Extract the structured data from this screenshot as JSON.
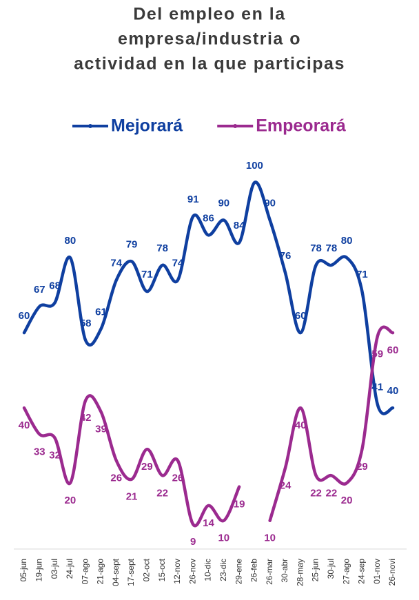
{
  "chart_data": {
    "type": "line",
    "title": [
      "Del empleo en la",
      "empresa/industria o",
      "actividad en la que participas"
    ],
    "categories": [
      "05-jun",
      "19-jun",
      "03-jul",
      "24-jul",
      "07-ago",
      "21-ago",
      "04-sept",
      "17-sept",
      "02-oct",
      "15-oct",
      "12-nov",
      "26-nov",
      "10-dic",
      "23-dic",
      "29-ene",
      "26-feb",
      "26-mar",
      "30-abr",
      "28-may",
      "25-jun",
      "30-jul",
      "27-ago",
      "24-sep",
      "01-nov",
      "26-novi"
    ],
    "series": [
      {
        "name": "Mejorará",
        "color": "#0f3fa0",
        "values": [
          60,
          67,
          68,
          80,
          58,
          61,
          74,
          79,
          71,
          78,
          74,
          91,
          86,
          90,
          84,
          100,
          90,
          76,
          60,
          78,
          78,
          80,
          71,
          41,
          40
        ]
      },
      {
        "name": "Empeorará",
        "color": "#9b2a8f",
        "values": [
          40,
          33,
          32,
          20,
          42,
          39,
          26,
          21,
          29,
          22,
          26,
          9,
          14,
          10,
          19,
          null,
          10,
          24,
          40,
          22,
          22,
          20,
          29,
          59,
          60
        ]
      }
    ],
    "ylim": [
      5,
      100
    ],
    "legend": "top"
  }
}
